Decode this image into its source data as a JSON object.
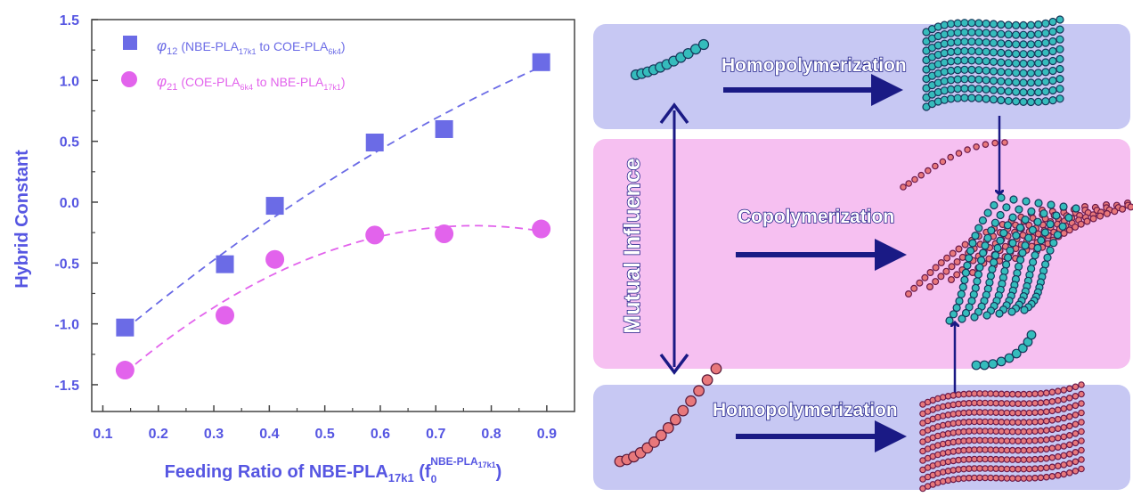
{
  "chart_data": {
    "type": "scatter",
    "xlabel": {
      "main": "Feeding Ratio of NBE-PLA",
      "main_sub": "17k1",
      "f": "f",
      "f_sub": "0",
      "f_sup": "NBE-PLA",
      "f_sup_sub": "17k1"
    },
    "ylabel": "Hybrid Constant",
    "xlim": [
      0.08,
      0.95
    ],
    "ylim": [
      -1.72,
      1.5
    ],
    "x_ticks": [
      "0.1",
      "0.2",
      "0.3",
      "0.4",
      "0.5",
      "0.6",
      "0.7",
      "0.8",
      "0.9"
    ],
    "y_ticks": [
      "1.5",
      "1.0",
      "0.5",
      "0.0",
      "-0.5",
      "-1.0",
      "-1.5"
    ],
    "grid": false,
    "legend_position": "top-left",
    "series": [
      {
        "symbol": "φ",
        "symbol_sub": "12",
        "desc": {
          "a": "NBE-PLA",
          "a_sub": "17k1",
          "mid": " to ",
          "b": "COE-PLA",
          "b_sub": "6k4"
        },
        "marker": "square",
        "color": "#6b6be6",
        "x": [
          0.14,
          0.32,
          0.41,
          0.59,
          0.715,
          0.89
        ],
        "y": [
          -1.03,
          -0.51,
          -0.03,
          0.49,
          0.6,
          1.15
        ],
        "fit": "dashed"
      },
      {
        "symbol": "φ",
        "symbol_sub": "21",
        "desc": {
          "a": "COE-PLA",
          "a_sub": "6k4",
          "mid": " to ",
          "b": "NBE-PLA",
          "b_sub": "17k1"
        },
        "marker": "circle",
        "color": "#e263ec",
        "x": [
          0.14,
          0.32,
          0.41,
          0.59,
          0.715,
          0.89
        ],
        "y": [
          -1.38,
          -0.93,
          -0.47,
          -0.27,
          -0.26,
          -0.22
        ],
        "fit": "dashed"
      }
    ]
  },
  "schematic": {
    "top_label": "Homopolymerization",
    "middle_label": "Copolymerization",
    "bottom_label": "Homopolymerization",
    "side_label": "Mutual Influence",
    "colors": {
      "band_top": "#c7c8f3",
      "band_middle": "#f6c0f1",
      "band_bottom": "#c7c8f3",
      "arrow": "#1a1a85",
      "teal": "#35bcbc",
      "coral": "#e8787b"
    }
  }
}
